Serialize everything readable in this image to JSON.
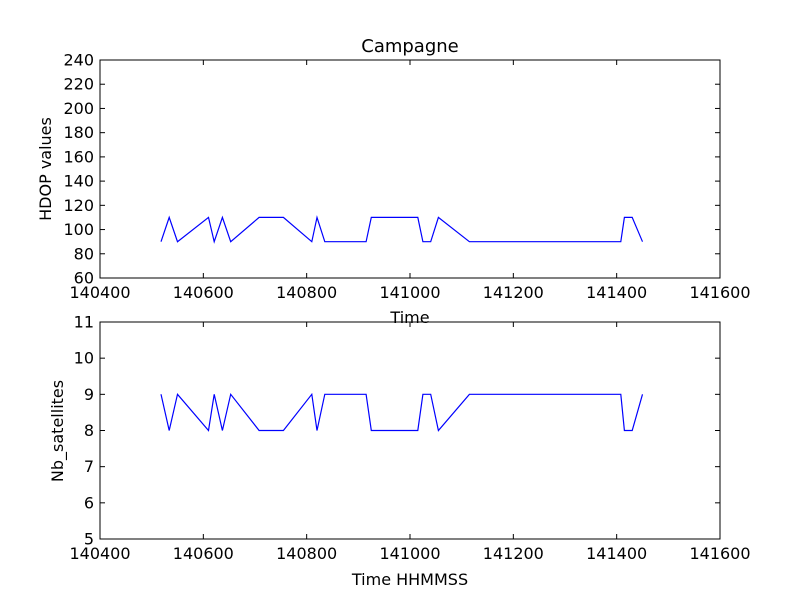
{
  "chart_data": [
    {
      "type": "line",
      "title": "Campagne",
      "xlabel": "Time",
      "ylabel": "HDOP values",
      "xlim": [
        140400,
        141600
      ],
      "ylim": [
        60,
        240
      ],
      "x_ticks": [
        "140400",
        "140600",
        "140800",
        "141000",
        "141200",
        "141400",
        "141600"
      ],
      "y_ticks": [
        "60",
        "80",
        "100",
        "120",
        "140",
        "160",
        "180",
        "200",
        "220",
        "240"
      ],
      "grid": false,
      "series": [
        {
          "color": "#0000ff",
          "x": [
            140518,
            140534,
            140550,
            140610,
            140621,
            140637,
            140653,
            140708,
            140755,
            140810,
            140820,
            140835,
            140915,
            140925,
            141015,
            141025,
            141040,
            141055,
            141115,
            141408,
            141415,
            141430,
            141450
          ],
          "y": [
            90,
            110,
            90,
            110,
            90,
            110,
            90,
            110,
            110,
            90,
            110,
            90,
            90,
            110,
            110,
            90,
            90,
            110,
            90,
            90,
            110,
            110,
            90
          ]
        }
      ]
    },
    {
      "type": "line",
      "title": "",
      "xlabel": "Time HHMMSS",
      "ylabel": "Nb_satellites",
      "xlim": [
        140400,
        141600
      ],
      "ylim": [
        5,
        11
      ],
      "x_ticks": [
        "140400",
        "140600",
        "140800",
        "141000",
        "141200",
        "141400",
        "141600"
      ],
      "y_ticks": [
        "5",
        "6",
        "7",
        "8",
        "9",
        "10",
        "11"
      ],
      "grid": false,
      "series": [
        {
          "color": "#0000ff",
          "x": [
            140518,
            140534,
            140550,
            140610,
            140621,
            140637,
            140653,
            140708,
            140755,
            140810,
            140820,
            140835,
            140915,
            140925,
            141015,
            141025,
            141040,
            141055,
            141115,
            141408,
            141415,
            141430,
            141450
          ],
          "y": [
            9,
            8,
            9,
            8,
            9,
            8,
            9,
            8,
            8,
            9,
            8,
            9,
            9,
            8,
            8,
            9,
            9,
            8,
            9,
            9,
            8,
            8,
            9
          ]
        }
      ]
    }
  ]
}
